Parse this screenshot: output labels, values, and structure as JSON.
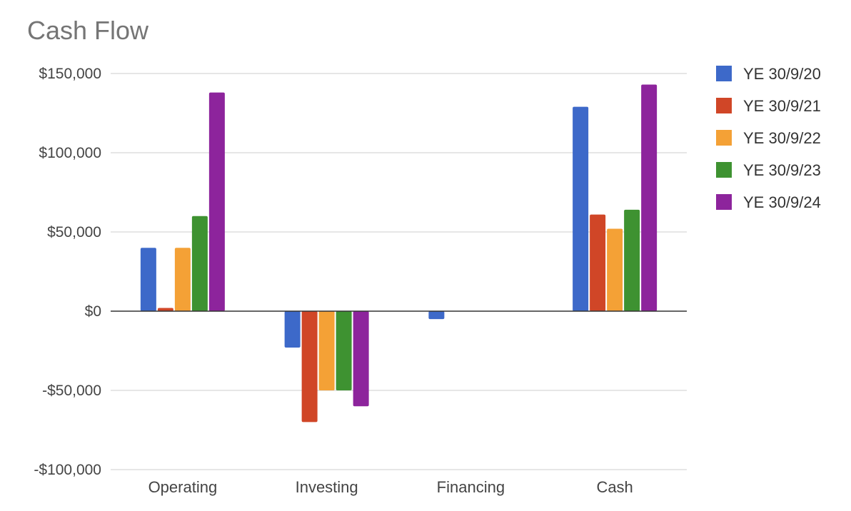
{
  "chart_data": {
    "type": "bar",
    "title": "Cash Flow",
    "categories": [
      "Operating",
      "Investing",
      "Financing",
      "Cash"
    ],
    "series": [
      {
        "name": "YE 30/9/20",
        "color": "#3d69c9",
        "values": [
          40000,
          -23000,
          -5000,
          129000
        ]
      },
      {
        "name": "YE 30/9/21",
        "color": "#d04627",
        "values": [
          2000,
          -70000,
          0,
          61000
        ]
      },
      {
        "name": "YE 30/9/22",
        "color": "#f4a136",
        "values": [
          40000,
          -50000,
          0,
          52000
        ]
      },
      {
        "name": "YE 30/9/23",
        "color": "#3e9231",
        "values": [
          60000,
          -50000,
          0,
          64000
        ]
      },
      {
        "name": "YE 30/9/24",
        "color": "#8d249c",
        "values": [
          138000,
          -60000,
          0,
          143000
        ]
      }
    ],
    "ylim": [
      -100000,
      150000
    ],
    "yticks": [
      150000,
      100000,
      50000,
      0,
      -50000,
      -100000
    ],
    "ytick_labels": [
      "$150,000",
      "$100,000",
      "$50,000",
      "$0",
      "-$50,000",
      "-$100,000"
    ],
    "grid": true,
    "legend_position": "right"
  }
}
